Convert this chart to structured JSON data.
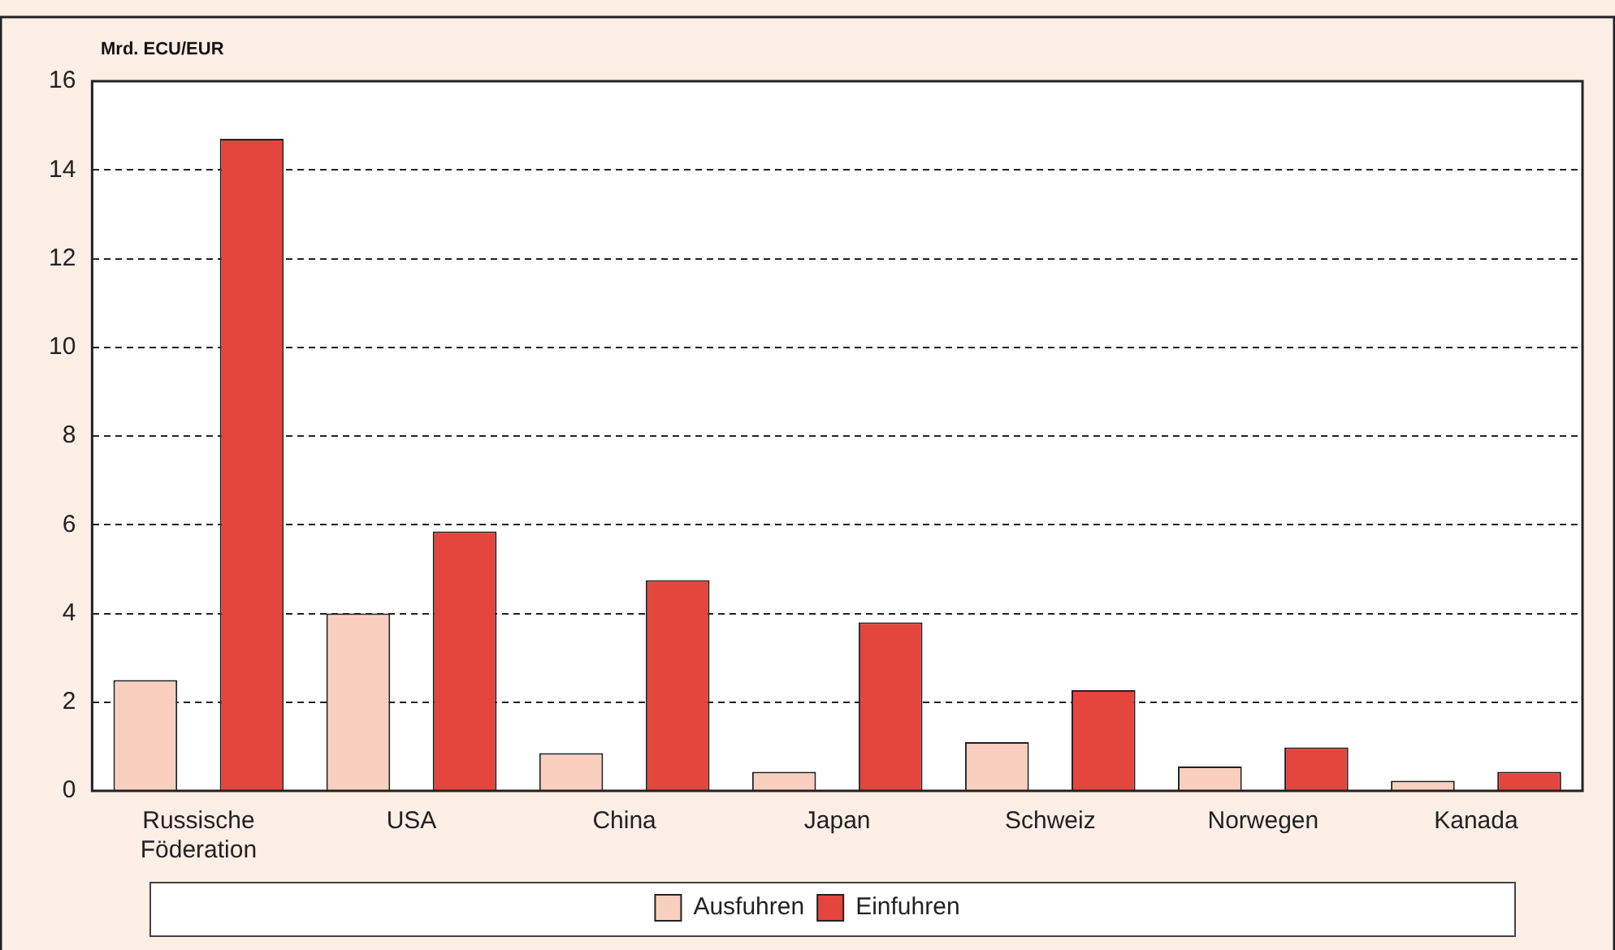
{
  "chart_data": {
    "type": "bar",
    "ylabel": "Mrd. ECU/EUR",
    "categories": [
      "Russische Föderation",
      "USA",
      "China",
      "Japan",
      "Schweiz",
      "Norwegen",
      "Kanada"
    ],
    "series": [
      {
        "name": "Ausfuhren",
        "color": "#f9d0c0",
        "values": [
          2.5,
          4.0,
          0.85,
          0.43,
          1.1,
          0.55,
          0.23
        ]
      },
      {
        "name": "Einfuhren",
        "color": "#e4463d",
        "values": [
          14.7,
          5.85,
          4.75,
          3.8,
          2.27,
          0.98,
          0.43
        ]
      }
    ],
    "ylim": [
      0,
      16
    ],
    "yticks": [
      0,
      2,
      4,
      6,
      8,
      10,
      12,
      14,
      16
    ],
    "grid": "y",
    "legend": "bottom"
  }
}
